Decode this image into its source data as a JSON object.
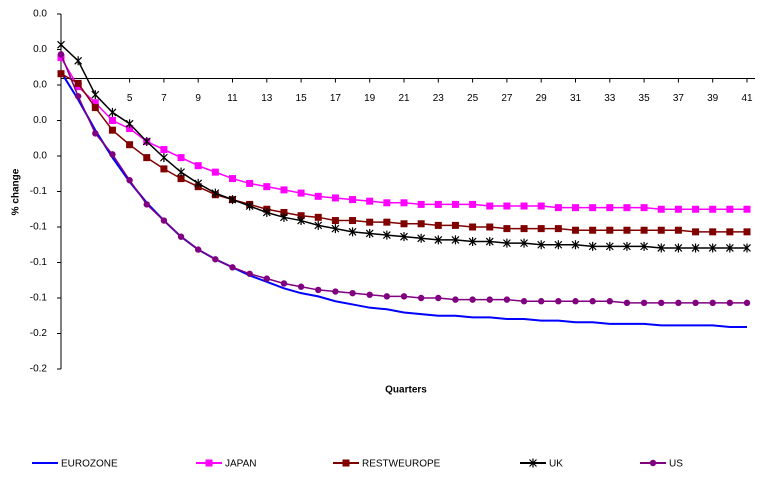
{
  "chart_data": {
    "type": "line",
    "y_label": "% change",
    "x_label": "Quarters",
    "x": [
      1,
      2,
      3,
      4,
      5,
      6,
      7,
      8,
      9,
      10,
      11,
      12,
      13,
      14,
      15,
      16,
      17,
      18,
      19,
      20,
      21,
      22,
      23,
      24,
      25,
      26,
      27,
      28,
      29,
      30,
      31,
      32,
      33,
      34,
      35,
      36,
      37,
      38,
      39,
      40,
      41
    ],
    "xlim": [
      1,
      41
    ],
    "xticks": [
      5,
      7,
      9,
      11,
      13,
      15,
      17,
      19,
      21,
      23,
      25,
      27,
      29,
      31,
      33,
      35,
      37,
      39,
      41
    ],
    "ylim": [
      -0.18,
      0.04
    ],
    "yticks": [
      {
        "value": 0.04,
        "label": "0.0"
      },
      {
        "value": 0.018,
        "label": "0.0"
      },
      {
        "value": -0.004,
        "label": "0.0"
      },
      {
        "value": -0.026,
        "label": "0.0"
      },
      {
        "value": -0.048,
        "label": "0.0"
      },
      {
        "value": -0.07,
        "label": "-0.1"
      },
      {
        "value": -0.092,
        "label": "-0.1"
      },
      {
        "value": -0.114,
        "label": "-0.1"
      },
      {
        "value": -0.136,
        "label": "-0.1"
      },
      {
        "value": -0.158,
        "label": "-0.2"
      },
      {
        "value": -0.18,
        "label": "-0.2"
      }
    ],
    "series": [
      {
        "name": "EUROZONE",
        "color": "#0000ff",
        "marker": "none",
        "values": [
          0.004,
          -0.013,
          -0.032,
          -0.049,
          -0.064,
          -0.077,
          -0.088,
          -0.098,
          -0.106,
          -0.112,
          -0.117,
          -0.122,
          -0.126,
          -0.13,
          -0.133,
          -0.135,
          -0.138,
          -0.14,
          -0.142,
          -0.143,
          -0.145,
          -0.146,
          -0.147,
          -0.147,
          -0.148,
          -0.148,
          -0.149,
          -0.149,
          -0.15,
          -0.15,
          -0.151,
          -0.151,
          -0.152,
          -0.152,
          -0.152,
          -0.153,
          -0.153,
          -0.153,
          -0.153,
          -0.154,
          -0.154
        ]
      },
      {
        "name": "JAPAN",
        "color": "#ff00ff",
        "marker": "square",
        "values": [
          0.013,
          -0.005,
          -0.015,
          -0.026,
          -0.031,
          -0.039,
          -0.044,
          -0.049,
          -0.054,
          -0.058,
          -0.062,
          -0.065,
          -0.067,
          -0.069,
          -0.071,
          -0.073,
          -0.074,
          -0.075,
          -0.076,
          -0.077,
          -0.077,
          -0.078,
          -0.078,
          -0.078,
          -0.078,
          -0.079,
          -0.079,
          -0.079,
          -0.079,
          -0.08,
          -0.08,
          -0.08,
          -0.08,
          -0.08,
          -0.08,
          -0.081,
          -0.081,
          -0.081,
          -0.081,
          -0.081,
          -0.081
        ]
      },
      {
        "name": "RESTWEUROPE",
        "color": "#800000",
        "marker": "square",
        "values": [
          0.003,
          -0.003,
          -0.018,
          -0.032,
          -0.041,
          -0.049,
          -0.056,
          -0.062,
          -0.067,
          -0.072,
          -0.075,
          -0.078,
          -0.081,
          -0.083,
          -0.085,
          -0.086,
          -0.088,
          -0.088,
          -0.089,
          -0.089,
          -0.09,
          -0.09,
          -0.091,
          -0.091,
          -0.092,
          -0.092,
          -0.093,
          -0.093,
          -0.093,
          -0.093,
          -0.094,
          -0.094,
          -0.094,
          -0.094,
          -0.094,
          -0.094,
          -0.094,
          -0.095,
          -0.095,
          -0.095,
          -0.095
        ]
      },
      {
        "name": "UK",
        "color": "#000000",
        "marker": "star",
        "values": [
          0.021,
          0.011,
          -0.01,
          -0.021,
          -0.028,
          -0.039,
          -0.049,
          -0.058,
          -0.065,
          -0.071,
          -0.075,
          -0.079,
          -0.083,
          -0.086,
          -0.088,
          -0.091,
          -0.093,
          -0.095,
          -0.096,
          -0.097,
          -0.098,
          -0.099,
          -0.1,
          -0.1,
          -0.101,
          -0.101,
          -0.102,
          -0.102,
          -0.103,
          -0.103,
          -0.103,
          -0.104,
          -0.104,
          -0.104,
          -0.104,
          -0.105,
          -0.105,
          -0.105,
          -0.105,
          -0.105,
          -0.105
        ]
      },
      {
        "name": "US",
        "color": "#800080",
        "marker": "circle",
        "values": [
          0.015,
          -0.011,
          -0.034,
          -0.047,
          -0.063,
          -0.078,
          -0.088,
          -0.098,
          -0.106,
          -0.112,
          -0.117,
          -0.121,
          -0.124,
          -0.127,
          -0.129,
          -0.131,
          -0.132,
          -0.133,
          -0.134,
          -0.135,
          -0.135,
          -0.136,
          -0.136,
          -0.137,
          -0.137,
          -0.137,
          -0.137,
          -0.138,
          -0.138,
          -0.138,
          -0.138,
          -0.138,
          -0.138,
          -0.139,
          -0.139,
          -0.139,
          -0.139,
          -0.139,
          -0.139,
          -0.139,
          -0.139
        ]
      }
    ]
  }
}
